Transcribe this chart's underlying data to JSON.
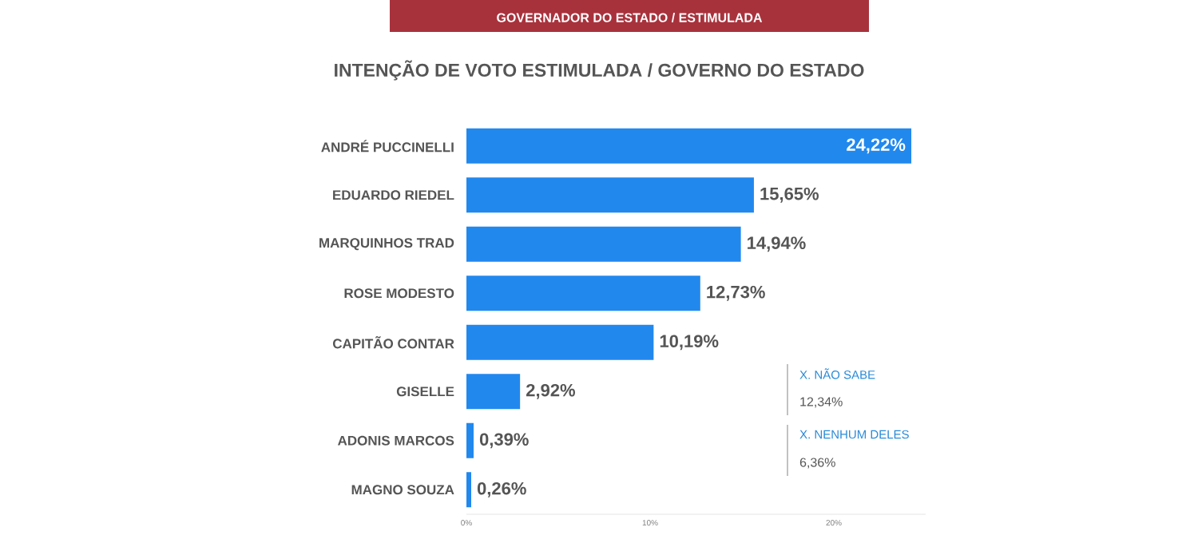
{
  "chart_data": {
    "type": "bar",
    "orientation": "horizontal",
    "title": "INTENÇÃO DE VOTO ESTIMULADA / GOVERNO DO ESTADO",
    "categories": [
      "ANDRÉ PUCCINELLI",
      "EDUARDO RIEDEL",
      "MARQUINHOS TRAD",
      "ROSE MODESTO",
      "CAPITÃO CONTAR",
      "GISELLE",
      "ADONIS MARCOS",
      "MAGNO SOUZA"
    ],
    "values": [
      24.22,
      15.65,
      14.94,
      12.73,
      10.19,
      2.92,
      0.39,
      0.26
    ],
    "value_labels": [
      "24,22%",
      "15,65%",
      "14,94%",
      "12,73%",
      "10,19%",
      "2,92%",
      "0,39%",
      "0,26%"
    ],
    "color": "#2188ee",
    "xlim": [
      0,
      25
    ],
    "xticks": [
      {
        "value": 0,
        "label": "0%"
      },
      {
        "value": 10,
        "label": "10%"
      },
      {
        "value": 20,
        "label": "20%"
      }
    ],
    "annotations": [
      "GOVERNADOR DO ESTADO / ESTIMULADA",
      "X. NÃO SABE",
      "12,34%",
      "X. NENHUM DELES",
      "6,36%"
    ]
  }
}
